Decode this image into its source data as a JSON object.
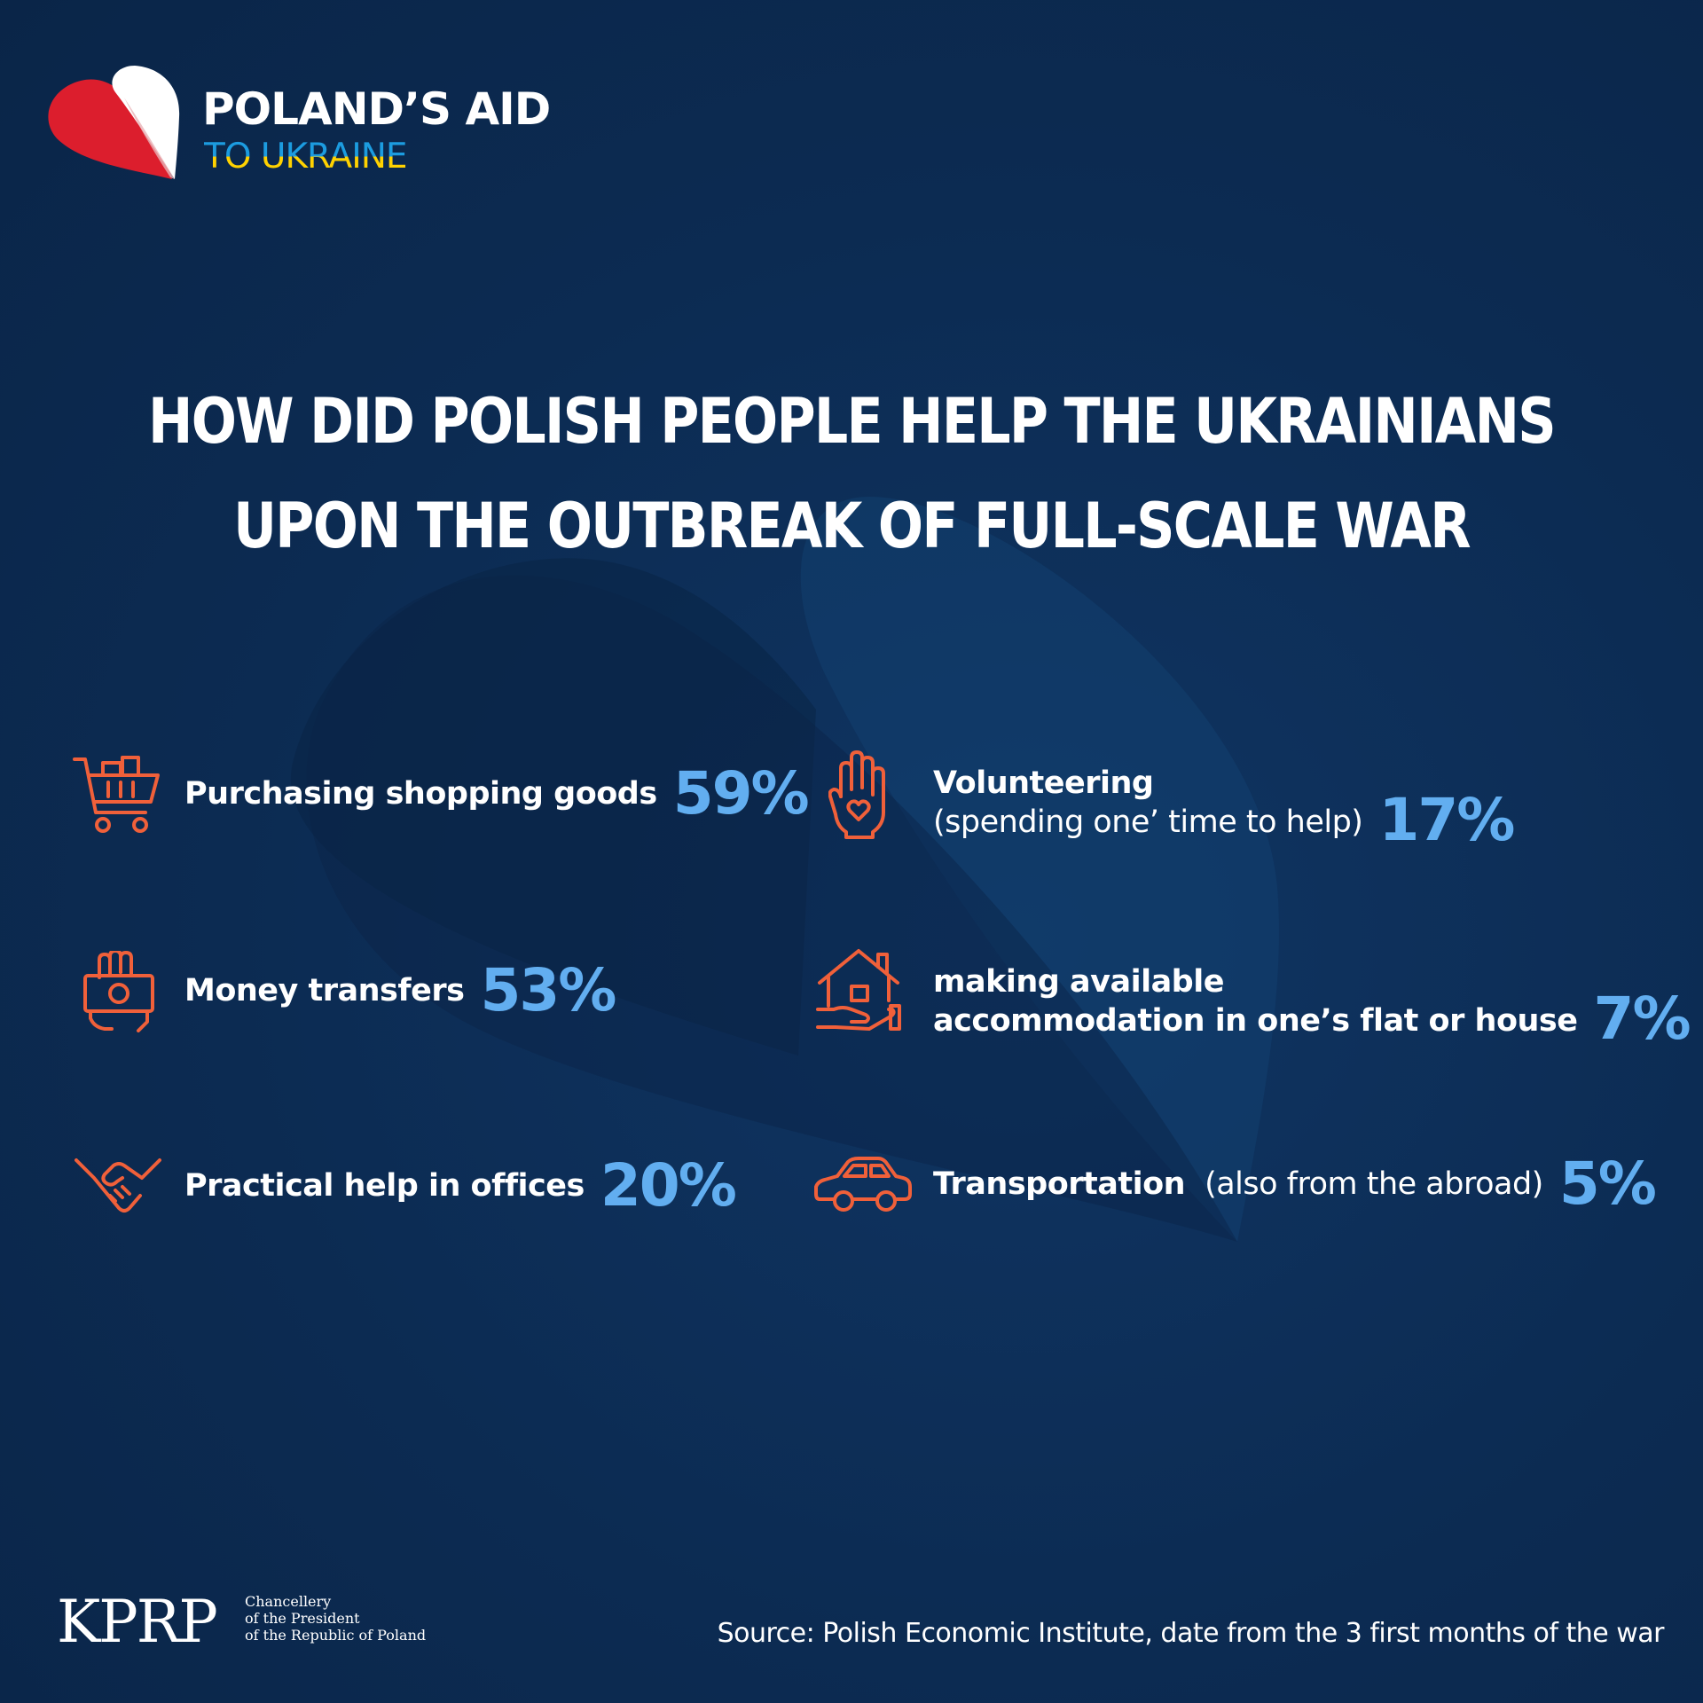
{
  "brand": {
    "title": "POLAND’S AID",
    "subtitle": "TO UKRAINE"
  },
  "headline": {
    "line1": "HOW DID POLISH PEOPLE HELP THE UKRAINIANS",
    "line2": "UPON THE OUTBREAK OF FULL-SCALE WAR"
  },
  "items": [
    {
      "icon": "shopping-cart-icon",
      "label": "Purchasing shopping goods",
      "value": "59%"
    },
    {
      "icon": "money-hand-icon",
      "label": "Money transfers",
      "value": "53%"
    },
    {
      "icon": "handshake-icon",
      "label": "Practical help in offices",
      "value": "20%"
    },
    {
      "icon": "hand-heart-icon",
      "label": "Volunteering",
      "label_note": "(spending one’ time to help)",
      "value": "17%"
    },
    {
      "icon": "house-hand-icon",
      "label": "making available",
      "label_line2": "accommodation in one’s flat or house",
      "value": "7%"
    },
    {
      "icon": "car-icon",
      "label": "Transportation",
      "label_note": "(also from the abroad)",
      "value": "5%"
    }
  ],
  "footer": {
    "kprp": "KPRP",
    "chancellery_line1": "Chancellery",
    "chancellery_line2": "of the President",
    "chancellery_line3": "of the Republic of Poland",
    "source": "Source: Polish Economic Institute, date from the 3 first months of the war"
  },
  "colors": {
    "background": "#0c2b52",
    "accent_percent": "#62aef0",
    "icon_orange": "#f0603a",
    "flag_red": "#dc1e2d",
    "ua_blue": "#1c9ce0",
    "ua_yellow": "#ffd200"
  }
}
